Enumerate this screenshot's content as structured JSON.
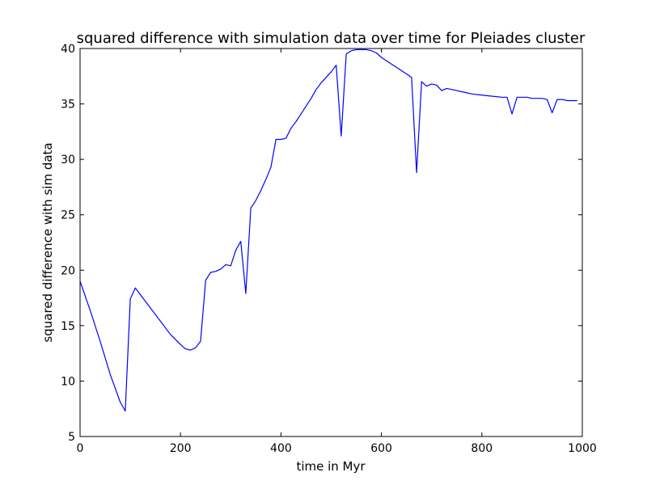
{
  "chart_data": {
    "type": "line",
    "title": "squared difference with simulation data over time for Pleiades cluster",
    "xlabel": "time in Myr",
    "ylabel": "squared difference with sim data",
    "xlim": [
      0,
      1000
    ],
    "ylim": [
      5,
      40
    ],
    "xticks": [
      0,
      200,
      400,
      600,
      800,
      1000
    ],
    "yticks": [
      5,
      10,
      15,
      20,
      25,
      30,
      35,
      40
    ],
    "grid": false,
    "colors": {
      "line": "#0000ff",
      "axes": "#000000",
      "background": "#ffffff"
    },
    "series": [
      {
        "x": [
          0,
          20,
          40,
          60,
          80,
          90,
          100,
          110,
          120,
          140,
          160,
          180,
          200,
          210,
          220,
          230,
          240,
          250,
          260,
          270,
          280,
          290,
          300,
          310,
          320,
          330,
          340,
          350,
          360,
          370,
          380,
          390,
          400,
          410,
          420,
          430,
          440,
          450,
          460,
          470,
          480,
          490,
          500,
          510,
          520,
          530,
          540,
          550,
          560,
          570,
          580,
          590,
          600,
          610,
          620,
          630,
          640,
          650,
          660,
          670,
          680,
          690,
          700,
          710,
          720,
          730,
          740,
          750,
          760,
          780,
          800,
          820,
          840,
          850,
          860,
          870,
          880,
          890,
          900,
          910,
          920,
          930,
          940,
          950,
          960,
          970,
          980,
          990
        ],
        "y": [
          19.0,
          16.4,
          13.6,
          10.6,
          8.1,
          7.3,
          17.4,
          18.4,
          17.8,
          16.6,
          15.4,
          14.2,
          13.3,
          12.9,
          12.8,
          13.0,
          13.6,
          19.1,
          19.8,
          19.9,
          20.1,
          20.5,
          20.4,
          21.8,
          22.6,
          17.9,
          25.6,
          26.3,
          27.2,
          28.2,
          29.3,
          31.8,
          31.8,
          31.9,
          32.8,
          33.4,
          34.1,
          34.8,
          35.5,
          36.3,
          36.9,
          37.4,
          37.9,
          38.5,
          32.1,
          39.5,
          39.8,
          39.9,
          39.9,
          39.9,
          39.8,
          39.6,
          39.2,
          38.9,
          38.6,
          38.3,
          38.0,
          37.7,
          37.4,
          28.8,
          37.0,
          36.6,
          36.8,
          36.7,
          36.2,
          36.4,
          36.3,
          36.2,
          36.1,
          35.9,
          35.8,
          35.7,
          35.6,
          35.6,
          34.1,
          35.6,
          35.6,
          35.6,
          35.5,
          35.5,
          35.5,
          35.4,
          34.2,
          35.4,
          35.4,
          35.3,
          35.3,
          35.3
        ]
      }
    ]
  }
}
